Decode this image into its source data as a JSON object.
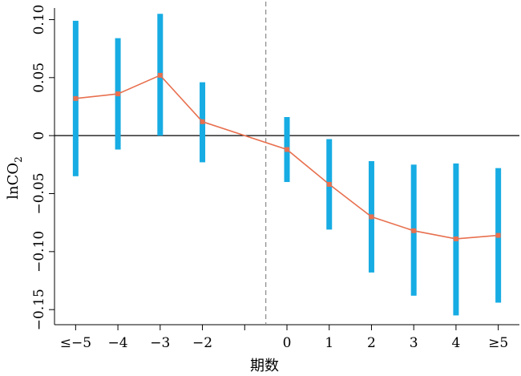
{
  "chart_data": {
    "type": "line",
    "title": "",
    "xlabel": "期数",
    "ylabel": "lnCO",
    "ylabel_subscript": "2",
    "categories": [
      "≤−5",
      "−4",
      "−3",
      "−2",
      "0",
      "1",
      "2",
      "3",
      "4",
      "≥5"
    ],
    "x": [
      -5,
      -4,
      -3,
      -2,
      0,
      1,
      2,
      3,
      4,
      5
    ],
    "series": [
      {
        "values": [
          0.032,
          0.036,
          0.052,
          0.012,
          -0.012,
          -0.042,
          -0.07,
          -0.082,
          -0.089,
          -0.086
        ],
        "ci_lower": [
          -0.035,
          -0.012,
          0.0,
          -0.023,
          -0.04,
          -0.081,
          -0.118,
          -0.138,
          -0.155,
          -0.144
        ],
        "ci_upper": [
          0.099,
          0.084,
          0.105,
          0.046,
          0.016,
          -0.003,
          -0.022,
          -0.025,
          -0.024,
          -0.028
        ]
      }
    ],
    "x_ticks": [
      -5,
      -4,
      -3,
      -2,
      -1,
      0,
      1,
      2,
      3,
      4,
      5
    ],
    "x_tick_labels": [
      "≤−5",
      "−4",
      "−3",
      "−2",
      "",
      "0",
      "1",
      "2",
      "3",
      "4",
      "≥5"
    ],
    "y_ticks": [
      0.1,
      0.05,
      0,
      -0.05,
      -0.1,
      -0.15
    ],
    "y_tick_labels": [
      "0.10",
      "0.05",
      "0",
      "−0.05",
      "−0.10",
      "−0.15"
    ],
    "xlim": [
      -5.5,
      5.5
    ],
    "ylim": [
      -0.163,
      0.11
    ],
    "zero_line": true,
    "reference_vline_x": -0.5,
    "grid": false,
    "colors": {
      "ci_bar": "#17ace3",
      "line": "#e8704f",
      "point": "#e8704f",
      "zero_line": "#000000",
      "vline": "#8a8a8a"
    }
  }
}
